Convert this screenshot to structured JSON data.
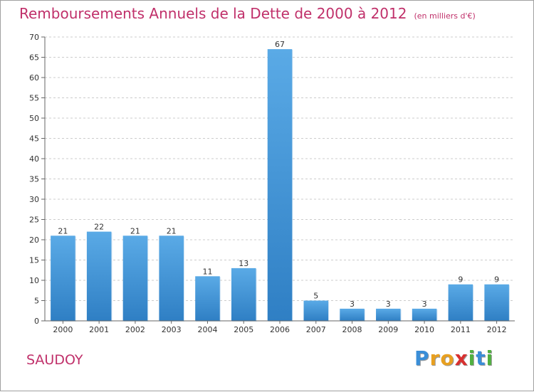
{
  "chart_data": {
    "type": "bar",
    "title": "Remboursements Annuels de la Dette de 2000 à 2012",
    "subtitle": "(en milliers d'€)",
    "categories": [
      "2000",
      "2001",
      "2002",
      "2003",
      "2004",
      "2005",
      "2006",
      "2007",
      "2008",
      "2009",
      "2010",
      "2011",
      "2012"
    ],
    "values": [
      21,
      22,
      21,
      21,
      11,
      13,
      67,
      5,
      3,
      3,
      3,
      9,
      9
    ],
    "ylim": [
      0,
      70
    ],
    "yticks": [
      0,
      5,
      10,
      15,
      20,
      25,
      30,
      35,
      40,
      45,
      50,
      55,
      60,
      65,
      70
    ],
    "grid": true,
    "bar_color_top": "#5aaae6",
    "bar_color_bottom": "#2f7fc4"
  },
  "footer": {
    "place": "SAUDOY",
    "brand_letters": [
      "P",
      "r",
      "o",
      "x",
      "i",
      "t",
      "i"
    ],
    "brand_colors": [
      "#3a8ed8",
      "#e8a020",
      "#e8a020",
      "#d83030",
      "#50b040",
      "#3a8ed8",
      "#50b040"
    ]
  }
}
